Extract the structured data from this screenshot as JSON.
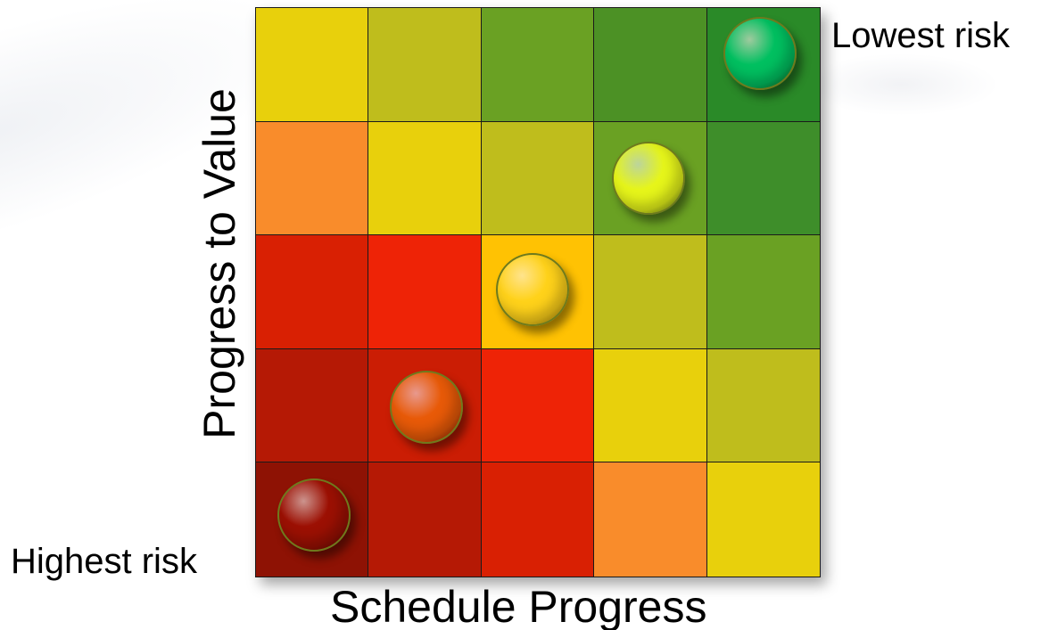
{
  "labels": {
    "top_right": "Lowest risk",
    "bottom_left": "Highest risk",
    "x_axis": "Schedule Progress",
    "y_axis": "Progress to Value"
  },
  "matrix": {
    "rows": [
      [
        "#e8d00c",
        "#bfbd1c",
        "#6aa123",
        "#4c9125",
        "#2a8a28"
      ],
      [
        "#f98c2b",
        "#e8d00c",
        "#bfbd1c",
        "#6aa123",
        "#3e8e2a"
      ],
      [
        "#d92003",
        "#ee2306",
        "#ffc203",
        "#bfbd1c",
        "#6aa123"
      ],
      [
        "#b51905",
        "#cb1d04",
        "#ee2306",
        "#e8d00c",
        "#bfbd1c"
      ],
      [
        "#8e1204",
        "#b51905",
        "#d92003",
        "#f98c2b",
        "#e8d00c"
      ]
    ]
  },
  "markers": [
    {
      "name": "marker-lowest-risk",
      "row": 0,
      "col": 4,
      "color": "#00c060"
    },
    {
      "name": "marker-low-risk",
      "row": 1,
      "col": 3,
      "color": "#e6f51a"
    },
    {
      "name": "marker-medium-risk",
      "row": 2,
      "col": 2,
      "color": "#ffd21a"
    },
    {
      "name": "marker-high-risk",
      "row": 3,
      "col": 1,
      "color": "#e85a08"
    },
    {
      "name": "marker-highest-risk",
      "row": 4,
      "col": 0,
      "color": "#9c1003"
    }
  ]
}
